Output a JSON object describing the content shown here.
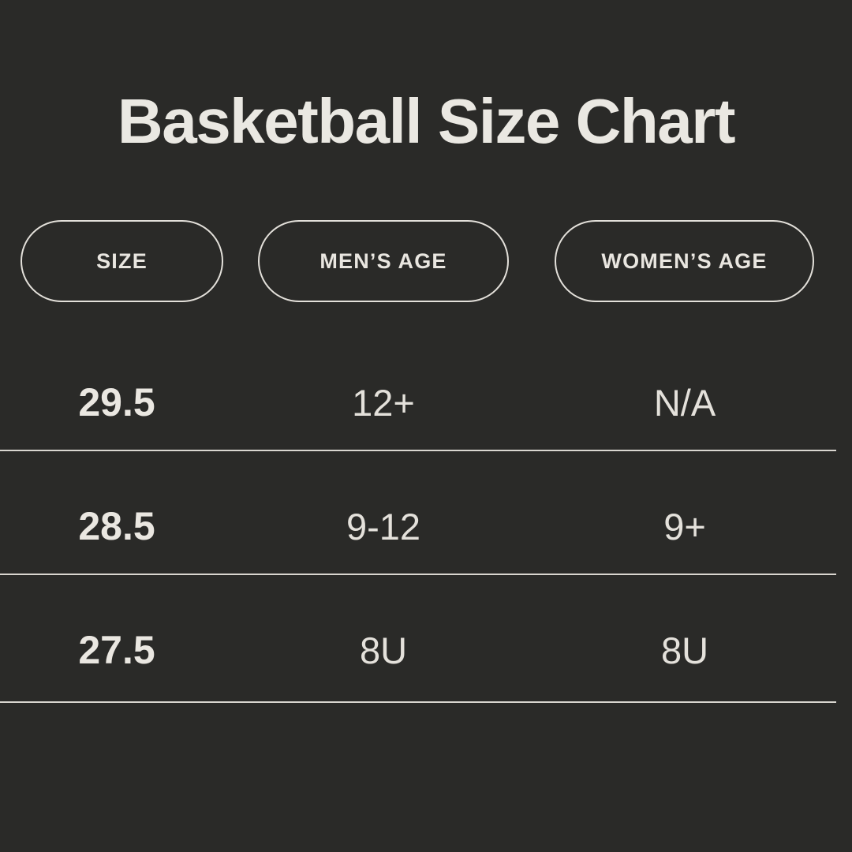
{
  "title": "Basketball Size Chart",
  "theme": {
    "background": "#2A2A28",
    "text_cream": "#EAE8E2",
    "pill_border": "#E3E0DA",
    "divider_line": "#D9D6D0"
  },
  "table": {
    "columns": [
      {
        "label": "SIZE"
      },
      {
        "label": "MEN’S AGE"
      },
      {
        "label": "WOMEN’S AGE"
      }
    ],
    "rows": [
      {
        "size": "29.5",
        "mens_age": "12+",
        "womens_age": "N/A"
      },
      {
        "size": "28.5",
        "mens_age": "9-12",
        "womens_age": "9+"
      },
      {
        "size": "27.5",
        "mens_age": "8U",
        "womens_age": "8U"
      }
    ]
  }
}
